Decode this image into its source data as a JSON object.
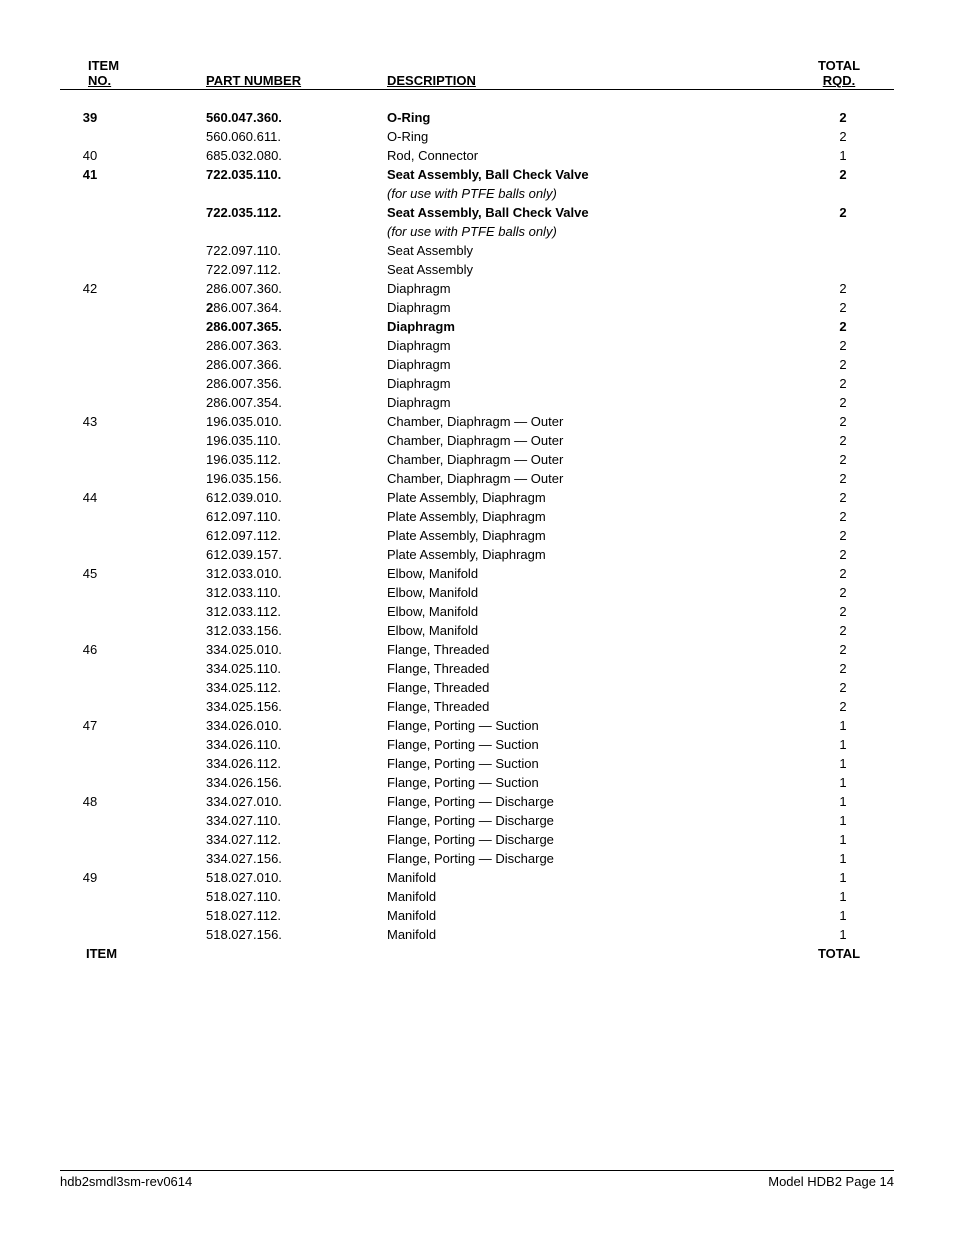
{
  "header": {
    "item_top": "ITEM",
    "no": "NO.",
    "part_number": "PART NUMBER",
    "description": "DESCRIPTION",
    "total_top": "TOTAL",
    "rqd": "RQD."
  },
  "rows": [
    {
      "item": "39",
      "part": "560.047.360.",
      "desc": "O-Ring",
      "qty": "2",
      "bold": true
    },
    {
      "item": "",
      "part": "560.060.611.",
      "desc": "O-Ring",
      "qty": "2"
    },
    {
      "item": "40",
      "part": "685.032.080.",
      "desc": "Rod, Connector",
      "qty": "1"
    },
    {
      "item": "41",
      "part": "722.035.110.",
      "desc": "Seat Assembly, Ball Check Valve",
      "qty": "2",
      "bold": true
    },
    {
      "item": "",
      "part": "",
      "desc": "(for use with PTFE balls only)",
      "qty": "",
      "italic": true
    },
    {
      "item": "",
      "part": "722.035.112.",
      "desc": "Seat Assembly, Ball Check Valve",
      "qty": "2",
      "bold": true
    },
    {
      "item": "",
      "part": "",
      "desc": "(for use with PTFE balls only)",
      "qty": "",
      "italic": true
    },
    {
      "item": "",
      "part": "722.097.110.",
      "desc": "Seat Assembly",
      "qty": ""
    },
    {
      "item": "",
      "part": "722.097.112.",
      "desc": "Seat Assembly",
      "qty": ""
    },
    {
      "item": "42",
      "part": "286.007.360.",
      "desc": "Diaphragm",
      "qty": "2"
    },
    {
      "item": "",
      "part": "286.007.364.",
      "desc": "Diaphragm",
      "qty": "2",
      "bold_first_char": true
    },
    {
      "item": "",
      "part": "286.007.365.",
      "desc": "Diaphragm",
      "qty": "2",
      "bold": true
    },
    {
      "item": "",
      "part": "286.007.363.",
      "desc": "Diaphragm",
      "qty": "2"
    },
    {
      "item": "",
      "part": "286.007.366.",
      "desc": "Diaphragm",
      "qty": "2"
    },
    {
      "item": "",
      "part": "286.007.356.",
      "desc": "Diaphragm",
      "qty": "2"
    },
    {
      "item": "",
      "part": "286.007.354.",
      "desc": "Diaphragm",
      "qty": "2"
    },
    {
      "item": "43",
      "part": "196.035.010.",
      "desc": "Chamber, Diaphragm — Outer",
      "qty": "2"
    },
    {
      "item": "",
      "part": "196.035.110.",
      "desc": "Chamber, Diaphragm — Outer",
      "qty": "2"
    },
    {
      "item": "",
      "part": "196.035.112.",
      "desc": "Chamber, Diaphragm — Outer",
      "qty": "2"
    },
    {
      "item": "",
      "part": "196.035.156.",
      "desc": "Chamber, Diaphragm — Outer",
      "qty": "2"
    },
    {
      "item": "44",
      "part": "612.039.010.",
      "desc": "Plate Assembly, Diaphragm",
      "qty": "2"
    },
    {
      "item": "",
      "part": "612.097.110.",
      "desc": "Plate Assembly, Diaphragm",
      "qty": "2"
    },
    {
      "item": "",
      "part": "612.097.112.",
      "desc": "Plate Assembly, Diaphragm",
      "qty": "2"
    },
    {
      "item": "",
      "part": "612.039.157.",
      "desc": "Plate Assembly, Diaphragm",
      "qty": "2"
    },
    {
      "item": "45",
      "part": "312.033.010.",
      "desc": "Elbow, Manifold",
      "qty": "2"
    },
    {
      "item": "",
      "part": "312.033.110.",
      "desc": "Elbow, Manifold",
      "qty": "2"
    },
    {
      "item": "",
      "part": "312.033.112.",
      "desc": "Elbow, Manifold",
      "qty": "2"
    },
    {
      "item": "",
      "part": "312.033.156.",
      "desc": "Elbow, Manifold",
      "qty": "2"
    },
    {
      "item": "46",
      "part": "334.025.010.",
      "desc": "Flange, Threaded",
      "qty": "2"
    },
    {
      "item": "",
      "part": "334.025.110.",
      "desc": "Flange, Threaded",
      "qty": "2"
    },
    {
      "item": "",
      "part": "334.025.112.",
      "desc": "Flange, Threaded",
      "qty": "2"
    },
    {
      "item": "",
      "part": "334.025.156.",
      "desc": "Flange, Threaded",
      "qty": "2"
    },
    {
      "item": "47",
      "part": "334.026.010.",
      "desc": "Flange, Porting — Suction",
      "qty": "1"
    },
    {
      "item": "",
      "part": "334.026.110.",
      "desc": "Flange, Porting — Suction",
      "qty": "1"
    },
    {
      "item": "",
      "part": "334.026.112.",
      "desc": "Flange, Porting — Suction",
      "qty": "1"
    },
    {
      "item": "",
      "part": "334.026.156.",
      "desc": "Flange, Porting — Suction",
      "qty": "1"
    },
    {
      "item": "48",
      "part": "334.027.010.",
      "desc": "Flange, Porting — Discharge",
      "qty": "1"
    },
    {
      "item": "",
      "part": "334.027.110.",
      "desc": "Flange, Porting — Discharge",
      "qty": "1"
    },
    {
      "item": "",
      "part": "334.027.112.",
      "desc": "Flange, Porting — Discharge",
      "qty": "1"
    },
    {
      "item": "",
      "part": "334.027.156.",
      "desc": "Flange, Porting — Discharge",
      "qty": "1"
    },
    {
      "item": "49",
      "part": "518.027.010.",
      "desc": "Manifold",
      "qty": "1"
    },
    {
      "item": "",
      "part": "518.027.110.",
      "desc": "Manifold",
      "qty": "1"
    },
    {
      "item": "",
      "part": "518.027.112.",
      "desc": "Manifold",
      "qty": "1"
    },
    {
      "item": "",
      "part": "518.027.156.",
      "desc": "Manifold",
      "qty": "1"
    }
  ],
  "footer_labels": {
    "item": "ITEM",
    "total": "TOTAL"
  },
  "footer": {
    "left": "hdb2smdl3sm-rev0614",
    "right": "Model HDB2   Page 14"
  }
}
